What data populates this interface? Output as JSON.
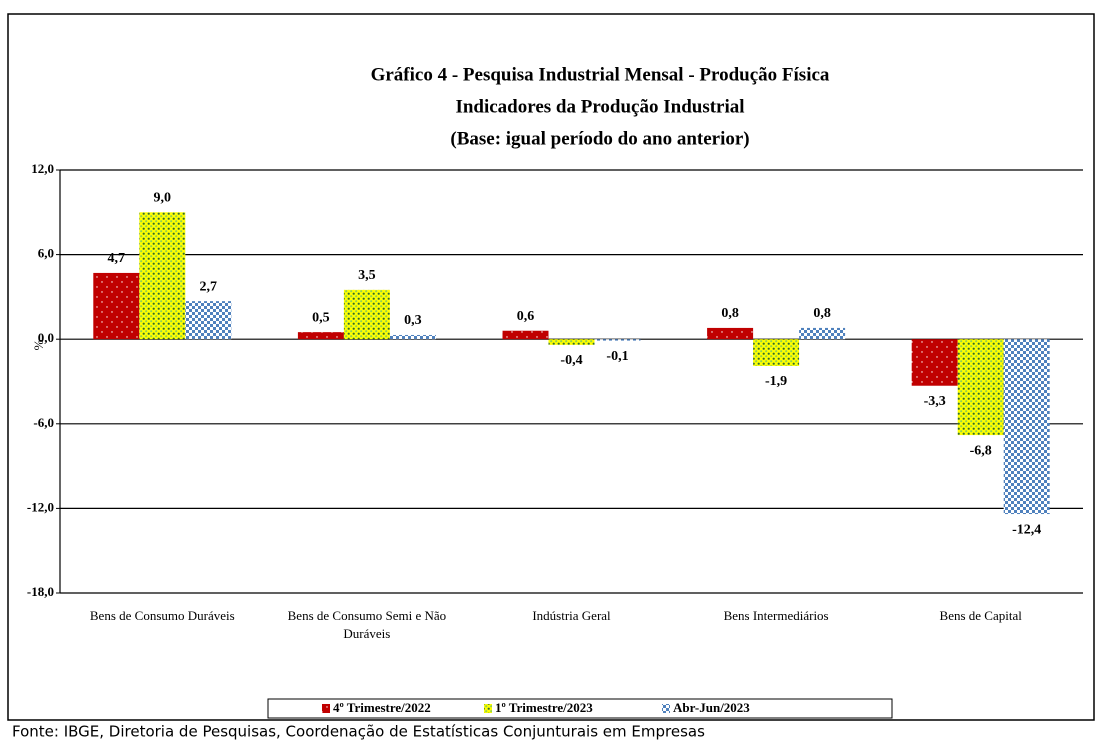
{
  "chart_data": {
    "type": "bar",
    "title": "Gráfico 4 - Pesquisa Industrial Mensal - Produção Física",
    "subtitle_lines": [
      "Indicadores da Produção Industrial",
      "(Base: igual período do ano anterior)"
    ],
    "y_label": "%",
    "categories": [
      "Bens de Consumo Duráveis",
      "Bens de Consumo Semi e Não Duráveis",
      "Indústria Geral",
      "Bens Intermediários",
      "Bens de Capital"
    ],
    "series": [
      {
        "name": "4º Trimestre/2022",
        "color": "#c00000",
        "values": [
          4.7,
          0.5,
          0.6,
          0.8,
          -3.3
        ],
        "value_labels": [
          "4,7",
          "0,5",
          "0,6",
          "0,8",
          "-3,3"
        ]
      },
      {
        "name": "1º Trimestre/2023",
        "color": "#92d050",
        "values": [
          9.0,
          3.5,
          -0.4,
          -1.9,
          -6.8
        ],
        "value_labels": [
          "9,0",
          "3,5",
          "-0,4",
          "-1,9",
          "-6,8"
        ]
      },
      {
        "name": "Abr-Jun/2023",
        "color": "#4f81bd",
        "values": [
          2.7,
          0.3,
          -0.1,
          0.8,
          -12.4
        ],
        "value_labels": [
          "2,7",
          "0,3",
          "-0,1",
          "0,8",
          "-12,4"
        ]
      }
    ],
    "ylim": [
      -18,
      12
    ],
    "yticks": [
      {
        "value": -18,
        "label": "-18,0"
      },
      {
        "value": -12,
        "label": "-12,0"
      },
      {
        "value": -6,
        "label": "-6,0"
      },
      {
        "value": 0,
        "label": "0,0"
      },
      {
        "value": 6,
        "label": "6,0"
      },
      {
        "value": 12,
        "label": "12,0"
      }
    ],
    "grid": true,
    "legend": "bottom",
    "source": "Fonte: IBGE, Diretoria de Pesquisas, Coordenação de Estatísticas Conjunturais em Empresas"
  }
}
